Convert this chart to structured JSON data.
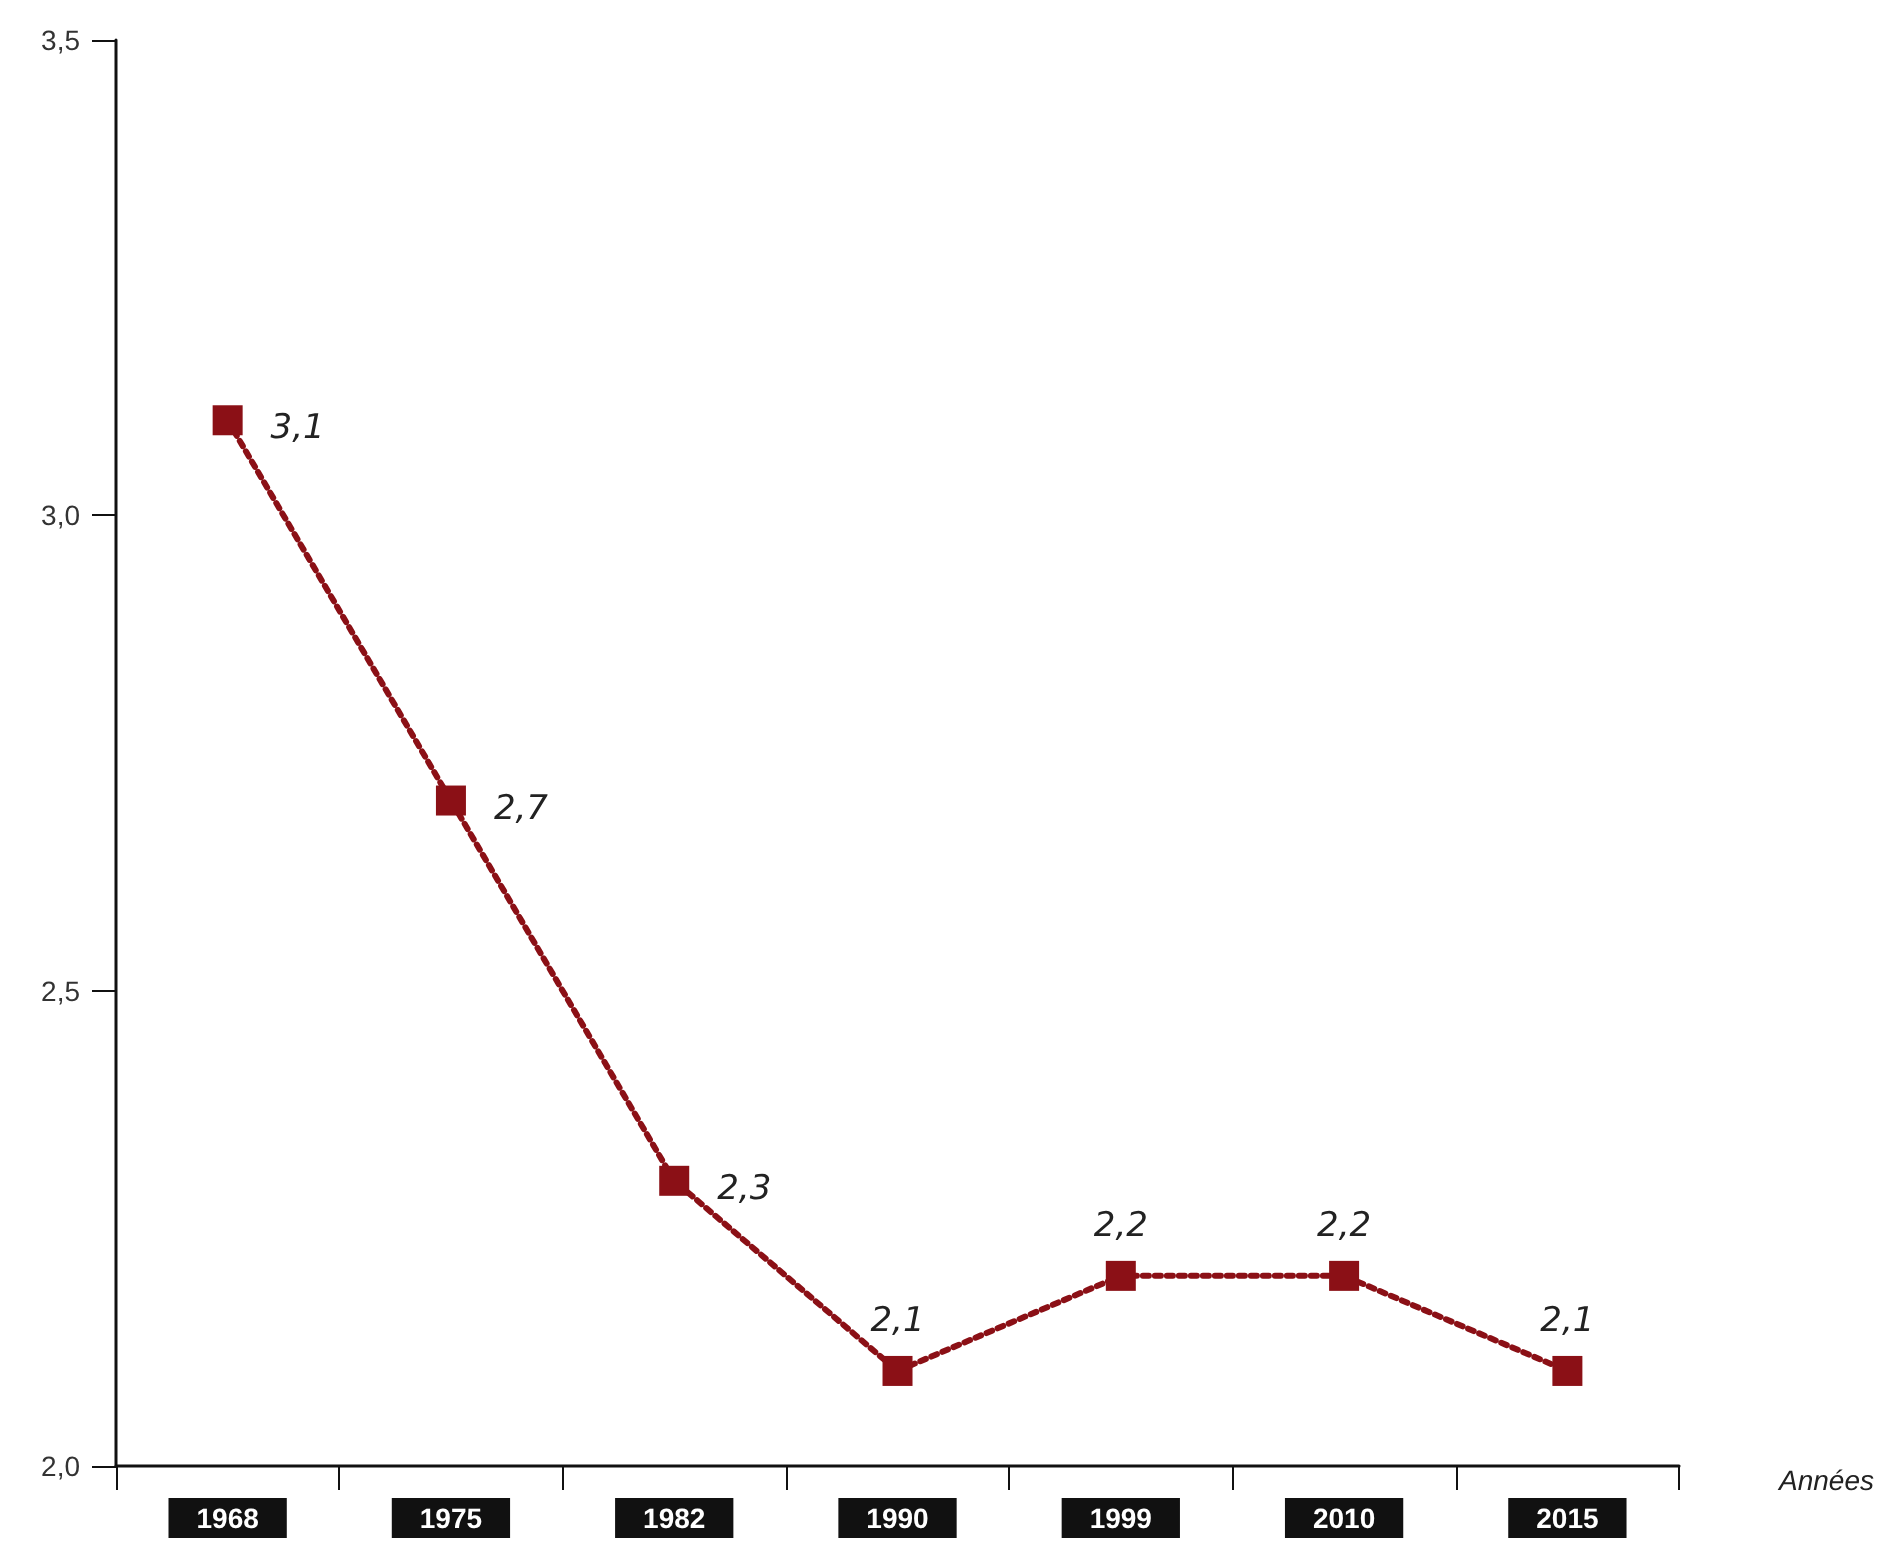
{
  "chart_data": {
    "type": "line",
    "xlabel": "Années",
    "categories": [
      "1968",
      "1975",
      "1982",
      "1990",
      "1999",
      "2010",
      "2015"
    ],
    "series": [
      {
        "color": "#8b1016",
        "values": [
          3.1,
          2.7,
          2.3,
          2.1,
          2.2,
          2.2,
          2.1
        ],
        "value_labels": [
          "3,1",
          "2,7",
          "2,3",
          "2,1",
          "2,2",
          "2,2",
          "2,1"
        ]
      }
    ],
    "ylim": [
      2.0,
      3.5
    ],
    "yticks": [
      {
        "value": 2.0,
        "label": "2,0"
      },
      {
        "value": 2.5,
        "label": "2,5"
      },
      {
        "value": 3.0,
        "label": "3,0"
      },
      {
        "value": 3.5,
        "label": "3,5"
      }
    ],
    "grid": false,
    "marker": "square",
    "line_style": "dotted"
  }
}
